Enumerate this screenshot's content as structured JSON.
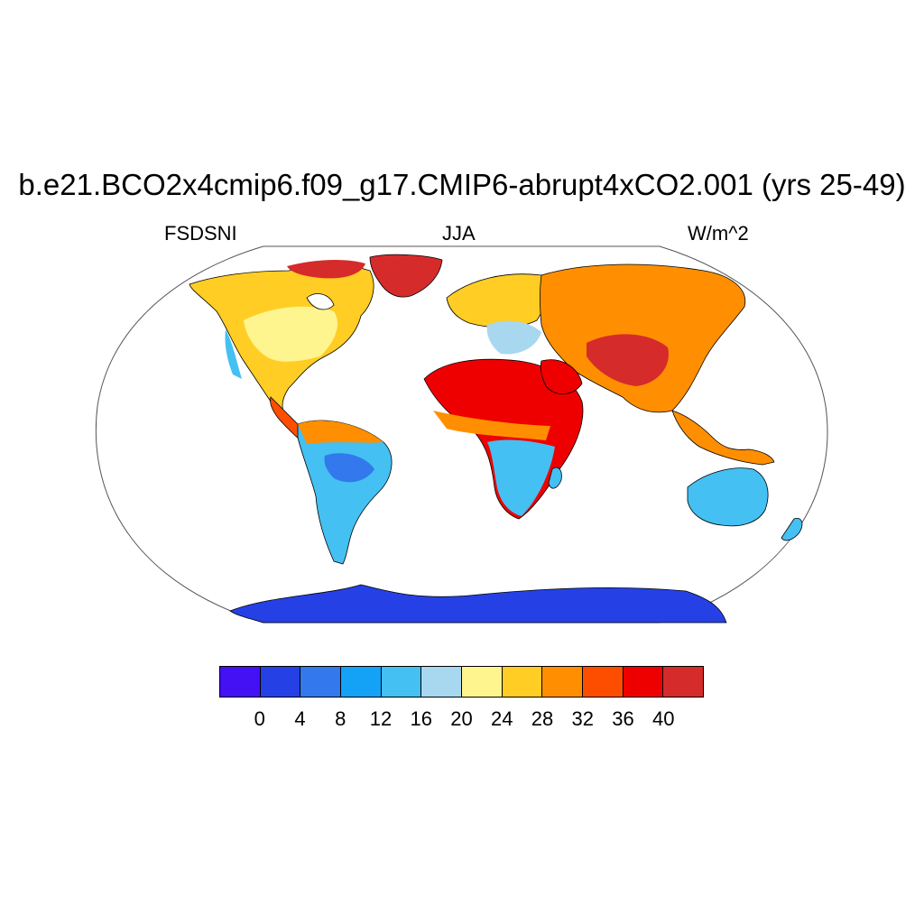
{
  "title": "b.e21.BCO2x4cmip6.f09_g17.CMIP6-abrupt4xCO2.001 (yrs 25-49)",
  "left_label": "FSDSNI",
  "center_label": "JJA",
  "right_label": "W/m^2",
  "colorbar": {
    "colors": [
      "#4410f4",
      "#2541e6",
      "#3378ec",
      "#14a2f7",
      "#44c0f2",
      "#a8d8f0",
      "#fef58f",
      "#ffcd23",
      "#ff8f00",
      "#fd4e00",
      "#ef0000",
      "#d62b2b"
    ],
    "tick_labels": [
      "0",
      "4",
      "8",
      "12",
      "16",
      "20",
      "24",
      "28",
      "32",
      "36",
      "40"
    ]
  }
}
